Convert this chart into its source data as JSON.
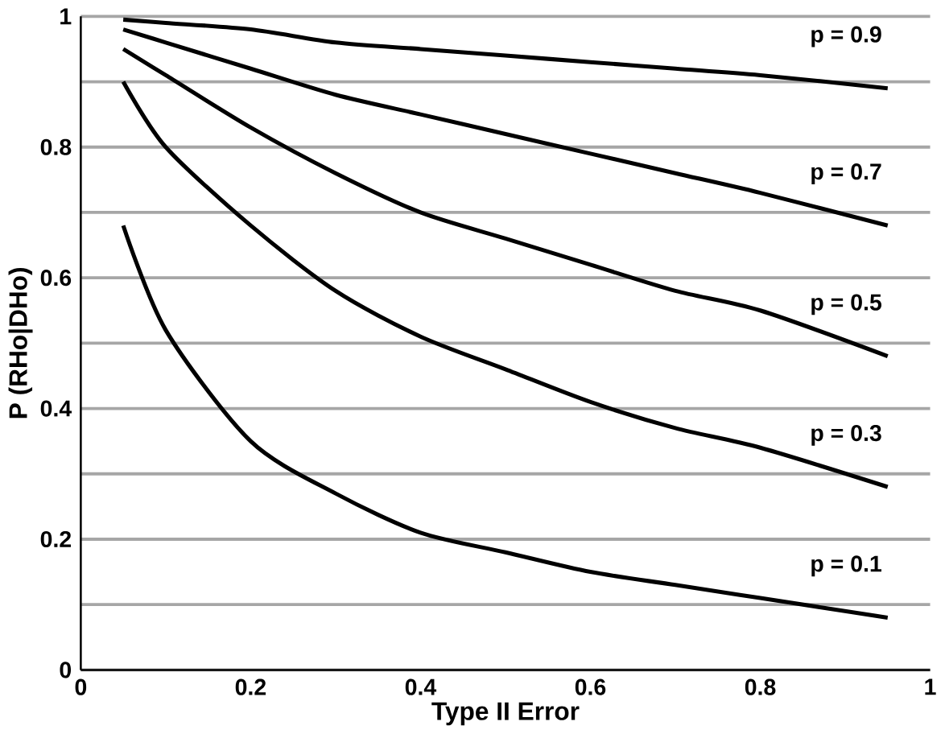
{
  "chart_data": {
    "type": "line",
    "xlabel": "Type II Error",
    "ylabel": "P (RHo|DHo)",
    "x": [
      0.05,
      0.1,
      0.2,
      0.3,
      0.4,
      0.5,
      0.6,
      0.7,
      0.8,
      0.95
    ],
    "series": [
      {
        "name": "p = 0.9",
        "color": "#000000",
        "values": [
          0.995,
          0.99,
          0.98,
          0.96,
          0.95,
          0.94,
          0.93,
          0.92,
          0.91,
          0.89
        ]
      },
      {
        "name": "p = 0.7",
        "color": "#000000",
        "values": [
          0.98,
          0.96,
          0.92,
          0.88,
          0.85,
          0.82,
          0.79,
          0.76,
          0.73,
          0.68
        ]
      },
      {
        "name": "p = 0.5",
        "color": "#000000",
        "values": [
          0.95,
          0.91,
          0.83,
          0.76,
          0.7,
          0.66,
          0.62,
          0.58,
          0.55,
          0.48
        ]
      },
      {
        "name": "p = 0.3",
        "color": "#000000",
        "values": [
          0.9,
          0.8,
          0.68,
          0.58,
          0.51,
          0.46,
          0.41,
          0.37,
          0.34,
          0.28
        ]
      },
      {
        "name": "p = 0.1",
        "color": "#000000",
        "values": [
          0.68,
          0.52,
          0.35,
          0.27,
          0.21,
          0.18,
          0.15,
          0.13,
          0.11,
          0.08
        ]
      }
    ],
    "xlim": [
      0,
      1
    ],
    "ylim": [
      0,
      1
    ],
    "xticks": [
      0,
      0.2,
      0.4,
      0.6,
      0.8,
      1
    ],
    "yticks": [
      0,
      {
        "value": 0.1,
        "label": null
      },
      0.2,
      {
        "value": 0.3,
        "label": null
      },
      0.4,
      {
        "value": 0.5,
        "label": null
      },
      0.6,
      {
        "value": 0.7,
        "label": null
      },
      0.8,
      {
        "value": 0.9,
        "label": null
      },
      1
    ],
    "grid": "y",
    "marker": "none",
    "line_style": "solid"
  }
}
